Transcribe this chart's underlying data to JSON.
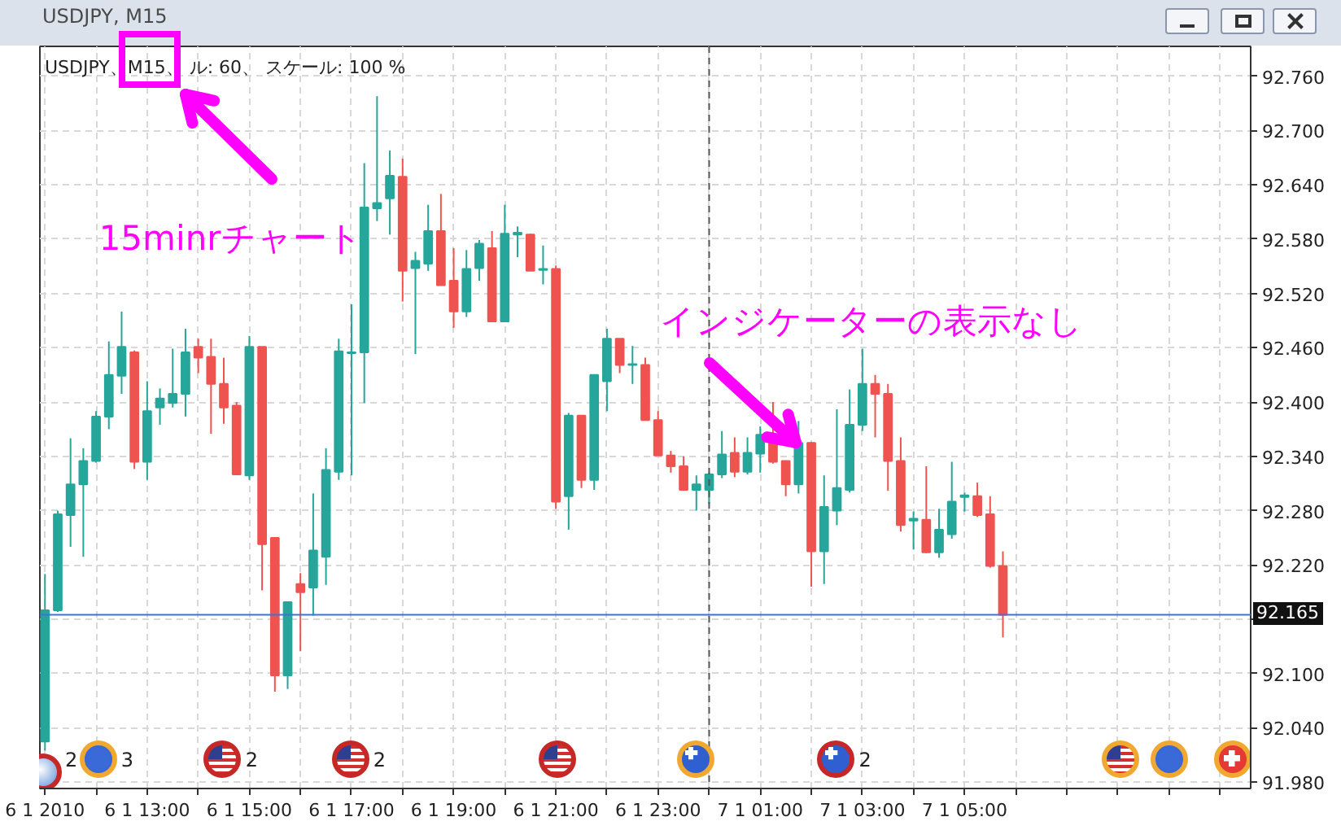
{
  "chart_data": {
    "type": "candlestick",
    "title": "USDJPY, M15",
    "subtitle": "USDJPY、M15、 ル: 60、 スケール: 100 %",
    "x": [
      "2010-01-06T11:00",
      "2010-01-06T11:15",
      "2010-01-06T11:30",
      "2010-01-06T11:45",
      "2010-01-06T12:00",
      "2010-01-06T12:15",
      "2010-01-06T12:30",
      "2010-01-06T12:45",
      "2010-01-06T13:00",
      "2010-01-06T13:15",
      "2010-01-06T13:30",
      "2010-01-06T13:45",
      "2010-01-06T14:00",
      "2010-01-06T14:15",
      "2010-01-06T14:30",
      "2010-01-06T14:45",
      "2010-01-06T15:00",
      "2010-01-06T15:15",
      "2010-01-06T15:30",
      "2010-01-06T15:45",
      "2010-01-06T16:00",
      "2010-01-06T16:15",
      "2010-01-06T16:30",
      "2010-01-06T16:45",
      "2010-01-06T17:00",
      "2010-01-06T17:15",
      "2010-01-06T17:30",
      "2010-01-06T17:45",
      "2010-01-06T18:00",
      "2010-01-06T18:15",
      "2010-01-06T18:30",
      "2010-01-06T18:45",
      "2010-01-06T19:00",
      "2010-01-06T19:15",
      "2010-01-06T19:30",
      "2010-01-06T19:45",
      "2010-01-06T20:00",
      "2010-01-06T20:15",
      "2010-01-06T20:30",
      "2010-01-06T20:45",
      "2010-01-06T21:00",
      "2010-01-06T21:15",
      "2010-01-06T21:30",
      "2010-01-06T21:45",
      "2010-01-06T22:00",
      "2010-01-06T22:15",
      "2010-01-06T22:30",
      "2010-01-06T22:45",
      "2010-01-06T23:00",
      "2010-01-06T23:15",
      "2010-01-06T23:30",
      "2010-01-06T23:45",
      "2010-01-07T00:00",
      "2010-01-07T00:15",
      "2010-01-07T00:30",
      "2010-01-07T00:45",
      "2010-01-07T01:00",
      "2010-01-07T01:15",
      "2010-01-07T01:30",
      "2010-01-07T01:45",
      "2010-01-07T02:00",
      "2010-01-07T02:15",
      "2010-01-07T02:30",
      "2010-01-07T02:45",
      "2010-01-07T03:00",
      "2010-01-07T03:15",
      "2010-01-07T03:30",
      "2010-01-07T03:45",
      "2010-01-07T04:00",
      "2010-01-07T04:15",
      "2010-01-07T04:30",
      "2010-01-07T04:45",
      "2010-01-07T05:00",
      "2010-01-07T05:15",
      "2010-01-07T05:30",
      "2010-01-07T05:45"
    ],
    "ohlc": [
      [
        92.025,
        92.21,
        92.015,
        92.17
      ],
      [
        92.17,
        92.28,
        92.168,
        92.276
      ],
      [
        92.275,
        92.36,
        92.24,
        92.309
      ],
      [
        92.309,
        92.349,
        92.229,
        92.335
      ],
      [
        92.335,
        92.39,
        92.333,
        92.384
      ],
      [
        92.384,
        92.467,
        92.37,
        92.43
      ],
      [
        92.429,
        92.5,
        92.409,
        92.461
      ],
      [
        92.455,
        92.457,
        92.326,
        92.334
      ],
      [
        92.334,
        92.423,
        92.314,
        92.39
      ],
      [
        92.394,
        92.415,
        92.375,
        92.404
      ],
      [
        92.399,
        92.459,
        92.394,
        92.409
      ],
      [
        92.409,
        92.481,
        92.384,
        92.455
      ],
      [
        92.461,
        92.47,
        92.432,
        92.449
      ],
      [
        92.45,
        92.47,
        92.365,
        92.42
      ],
      [
        92.42,
        92.449,
        92.376,
        92.394
      ],
      [
        92.396,
        92.4,
        92.32,
        92.32
      ],
      [
        92.319,
        92.473,
        92.314,
        92.461
      ],
      [
        92.461,
        92.461,
        92.192,
        92.243
      ],
      [
        92.25,
        92.25,
        92.08,
        92.098
      ],
      [
        92.098,
        92.179,
        92.083,
        92.179
      ],
      [
        92.199,
        92.211,
        92.125,
        92.19
      ],
      [
        92.195,
        92.299,
        92.164,
        92.236
      ],
      [
        92.229,
        92.349,
        92.198,
        92.325
      ],
      [
        92.323,
        92.47,
        92.314,
        92.456
      ],
      [
        92.454,
        92.508,
        92.319,
        92.455
      ],
      [
        92.455,
        92.664,
        92.399,
        92.615
      ],
      [
        92.614,
        92.738,
        92.6,
        92.62
      ],
      [
        92.625,
        92.678,
        92.585,
        92.65
      ],
      [
        92.649,
        92.669,
        92.511,
        92.545
      ],
      [
        92.548,
        92.566,
        92.453,
        92.556
      ],
      [
        92.553,
        92.618,
        92.545,
        92.589
      ],
      [
        92.589,
        92.63,
        92.529,
        92.529
      ],
      [
        92.534,
        92.57,
        92.482,
        92.5
      ],
      [
        92.5,
        92.568,
        92.494,
        92.547
      ],
      [
        92.548,
        92.579,
        92.534,
        92.575
      ],
      [
        92.57,
        92.589,
        92.489,
        92.489
      ],
      [
        92.489,
        92.618,
        92.489,
        92.586
      ],
      [
        92.585,
        92.594,
        92.56,
        92.587
      ],
      [
        92.585,
        92.586,
        92.545,
        92.545
      ],
      [
        92.546,
        92.573,
        92.53,
        92.547
      ],
      [
        92.547,
        92.551,
        92.282,
        92.29
      ],
      [
        92.296,
        92.388,
        92.259,
        92.385
      ],
      [
        92.385,
        92.385,
        92.305,
        92.314
      ],
      [
        92.314,
        92.43,
        92.303,
        92.43
      ],
      [
        92.423,
        92.481,
        92.39,
        92.47
      ],
      [
        92.47,
        92.47,
        92.432,
        92.441
      ],
      [
        92.441,
        92.462,
        92.42,
        92.442
      ],
      [
        92.441,
        92.449,
        92.38,
        92.38
      ],
      [
        92.38,
        92.39,
        92.341,
        92.341
      ],
      [
        92.341,
        92.346,
        92.322,
        92.329
      ],
      [
        92.329,
        92.34,
        92.302,
        92.303
      ],
      [
        92.303,
        92.319,
        92.28,
        92.309
      ],
      [
        92.303,
        92.322,
        92.288,
        92.32
      ],
      [
        92.32,
        92.368,
        92.316,
        92.342
      ],
      [
        92.344,
        92.361,
        92.317,
        92.323
      ],
      [
        92.323,
        92.361,
        92.32,
        92.344
      ],
      [
        92.343,
        92.373,
        92.322,
        92.364
      ],
      [
        92.36,
        92.4,
        92.332,
        92.334
      ],
      [
        92.335,
        92.335,
        92.296,
        92.309
      ],
      [
        92.309,
        92.379,
        92.299,
        92.355
      ],
      [
        92.355,
        92.356,
        92.196,
        92.235
      ],
      [
        92.235,
        92.319,
        92.199,
        92.284
      ],
      [
        92.28,
        92.392,
        92.264,
        92.305
      ],
      [
        92.303,
        92.414,
        92.3,
        92.375
      ],
      [
        92.375,
        92.459,
        92.368,
        92.42
      ],
      [
        92.42,
        92.43,
        92.361,
        92.409
      ],
      [
        92.409,
        92.42,
        92.302,
        92.335
      ],
      [
        92.335,
        92.361,
        92.257,
        92.264
      ],
      [
        92.269,
        92.279,
        92.237,
        92.271
      ],
      [
        92.27,
        92.329,
        92.233,
        92.234
      ],
      [
        92.234,
        92.282,
        92.228,
        92.259
      ],
      [
        92.254,
        92.334,
        92.249,
        92.29
      ],
      [
        92.295,
        92.3,
        92.279,
        92.297
      ],
      [
        92.296,
        92.311,
        92.273,
        92.275
      ],
      [
        92.276,
        92.296,
        92.217,
        92.219
      ],
      [
        92.219,
        92.235,
        92.14,
        92.165
      ]
    ],
    "colors": [
      "#26a69a",
      "#26a69a",
      "#26a69a",
      "#26a69a",
      "#26a69a",
      "#26a69a",
      "#26a69a",
      "#ef5350",
      "#26a69a",
      "#26a69a",
      "#26a69a",
      "#26a69a",
      "#ef5350",
      "#ef5350",
      "#ef5350",
      "#ef5350",
      "#26a69a",
      "#ef5350",
      "#ef5350",
      "#26a69a",
      "#ef5350",
      "#26a69a",
      "#26a69a",
      "#26a69a",
      "#26a69a",
      "#26a69a",
      "#26a69a",
      "#26a69a",
      "#ef5350",
      "#26a69a",
      "#26a69a",
      "#ef5350",
      "#ef5350",
      "#26a69a",
      "#26a69a",
      "#ef5350",
      "#26a69a",
      "#26a69a",
      "#ef5350",
      "#26a69a",
      "#ef5350",
      "#26a69a",
      "#ef5350",
      "#26a69a",
      "#26a69a",
      "#ef5350",
      "#26a69a",
      "#ef5350",
      "#ef5350",
      "#ef5350",
      "#ef5350",
      "#26a69a",
      "#26a69a",
      "#26a69a",
      "#ef5350",
      "#26a69a",
      "#26a69a",
      "#ef5350",
      "#ef5350",
      "#26a69a",
      "#ef5350",
      "#26a69a",
      "#26a69a",
      "#26a69a",
      "#26a69a",
      "#ef5350",
      "#ef5350",
      "#ef5350",
      "#26a69a",
      "#ef5350",
      "#26a69a",
      "#26a69a",
      "#26a69a",
      "#ef5350",
      "#ef5350",
      "#ef5350"
    ],
    "xlim": [
      "2010-01-06T10:54",
      "2010-01-07T10:36"
    ],
    "ylim": [
      91.973,
      92.793
    ],
    "xticks": [
      {
        "value": "2010-01-06T11:00",
        "label": "6 1 2010"
      },
      {
        "value": "2010-01-06T12:00",
        "label": null
      },
      {
        "value": "2010-01-06T13:00",
        "label": "6 1 13:00"
      },
      {
        "value": "2010-01-06T14:00",
        "label": null
      },
      {
        "value": "2010-01-06T15:00",
        "label": "6 1 15:00"
      },
      {
        "value": "2010-01-06T16:00",
        "label": null
      },
      {
        "value": "2010-01-06T17:00",
        "label": "6 1 17:00"
      },
      {
        "value": "2010-01-06T18:00",
        "label": null
      },
      {
        "value": "2010-01-06T19:00",
        "label": "6 1 19:00"
      },
      {
        "value": "2010-01-06T20:00",
        "label": null
      },
      {
        "value": "2010-01-06T21:00",
        "label": "6 1 21:00"
      },
      {
        "value": "2010-01-06T22:00",
        "label": null
      },
      {
        "value": "2010-01-06T23:00",
        "label": "6 1 23:00"
      },
      {
        "value": "2010-01-07T00:00",
        "label": null
      },
      {
        "value": "2010-01-07T01:00",
        "label": "7 1 01:00"
      },
      {
        "value": "2010-01-07T02:00",
        "label": null
      },
      {
        "value": "2010-01-07T03:00",
        "label": "7 1 03:00"
      },
      {
        "value": "2010-01-07T04:00",
        "label": null
      },
      {
        "value": "2010-01-07T05:00",
        "label": "7 1 05:00"
      },
      {
        "value": "2010-01-07T06:00",
        "label": null
      },
      {
        "value": "2010-01-07T07:00",
        "label": null
      },
      {
        "value": "2010-01-07T08:00",
        "label": null
      },
      {
        "value": "2010-01-07T09:00",
        "label": null
      },
      {
        "value": "2010-01-07T10:00",
        "label": null
      }
    ],
    "yticks": [
      {
        "value": 91.98,
        "label": "91.980"
      },
      {
        "value": 92.04,
        "label": "92.040"
      },
      {
        "value": 92.1,
        "label": "92.100"
      },
      {
        "value": 92.16,
        "label": null
      },
      {
        "value": 92.22,
        "label": "92.220"
      },
      {
        "value": 92.28,
        "label": "92.280"
      },
      {
        "value": 92.34,
        "label": "92.340"
      },
      {
        "value": 92.4,
        "label": "92.400"
      },
      {
        "value": 92.46,
        "label": "92.460"
      },
      {
        "value": 92.52,
        "label": "92.520"
      },
      {
        "value": 92.58,
        "label": "92.580"
      },
      {
        "value": 92.64,
        "label": "92.640"
      },
      {
        "value": 92.7,
        "label": "92.700"
      },
      {
        "value": 92.76,
        "label": "92.760"
      }
    ],
    "grid": true,
    "ref_lines": [
      {
        "axis": "y",
        "value": 92.165,
        "label": "92.165",
        "color": "#3f72d6"
      },
      {
        "axis": "x",
        "value": "2010-01-07T00:00",
        "color": "#555555",
        "line_style": "dashed"
      }
    ],
    "annotations": [
      "15minrチャート",
      "インジケーターの表示なし",
      "2",
      "3",
      "2",
      "2",
      "2"
    ]
  }
}
